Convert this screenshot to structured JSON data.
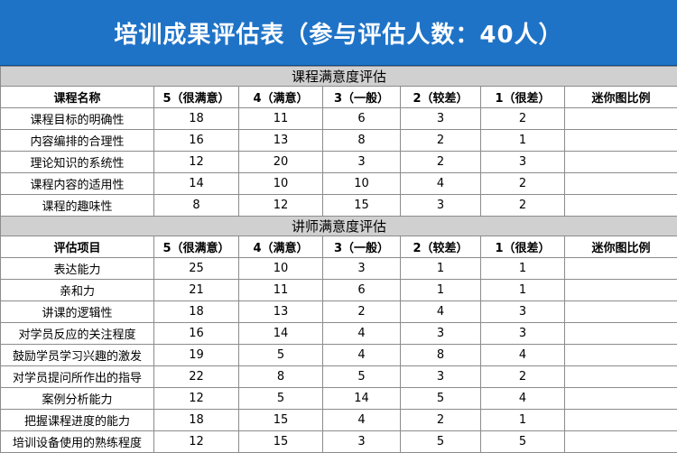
{
  "title": "培训成果评估表（参与评估人数：40人）",
  "sections": [
    {
      "heading": "课程满意度评估",
      "columns": [
        "课程名称",
        "5（很满意）",
        "4（满意）",
        "3（一般）",
        "2（较差）",
        "1（很差）",
        "迷你图比例"
      ],
      "rows": [
        {
          "name": "课程目标的明确性",
          "values": [
            "18",
            "11",
            "6",
            "3",
            "2"
          ]
        },
        {
          "name": "内容编排的合理性",
          "values": [
            "16",
            "13",
            "8",
            "2",
            "1"
          ]
        },
        {
          "name": "理论知识的系统性",
          "values": [
            "12",
            "20",
            "3",
            "2",
            "3"
          ]
        },
        {
          "name": "课程内容的适用性",
          "values": [
            "14",
            "10",
            "10",
            "4",
            "2"
          ]
        },
        {
          "name": "课程的趣味性",
          "values": [
            "8",
            "12",
            "15",
            "3",
            "2"
          ]
        }
      ]
    },
    {
      "heading": "讲师满意度评估",
      "columns": [
        "评估项目",
        "5（很满意）",
        "4（满意）",
        "3（一般）",
        "2（较差）",
        "1（很差）",
        "迷你图比例"
      ],
      "rows": [
        {
          "name": "表达能力",
          "values": [
            "25",
            "10",
            "3",
            "1",
            "1"
          ]
        },
        {
          "name": "亲和力",
          "values": [
            "21",
            "11",
            "6",
            "1",
            "1"
          ]
        },
        {
          "name": "讲课的逻辑性",
          "values": [
            "18",
            "13",
            "2",
            "4",
            "3"
          ]
        },
        {
          "name": "对学员反应的关注程度",
          "values": [
            "16",
            "14",
            "4",
            "3",
            "3"
          ]
        },
        {
          "name": "鼓励学员学习兴趣的激发",
          "values": [
            "19",
            "5",
            "4",
            "8",
            "4"
          ]
        },
        {
          "name": "对学员提问所作出的指导",
          "values": [
            "22",
            "8",
            "5",
            "3",
            "2"
          ]
        },
        {
          "name": "案例分析能力",
          "values": [
            "12",
            "5",
            "14",
            "5",
            "4"
          ]
        },
        {
          "name": "把握课程进度的能力",
          "values": [
            "18",
            "15",
            "4",
            "2",
            "1"
          ]
        },
        {
          "name": "培训设备使用的熟练程度",
          "values": [
            "12",
            "15",
            "3",
            "5",
            "5"
          ]
        }
      ]
    }
  ]
}
